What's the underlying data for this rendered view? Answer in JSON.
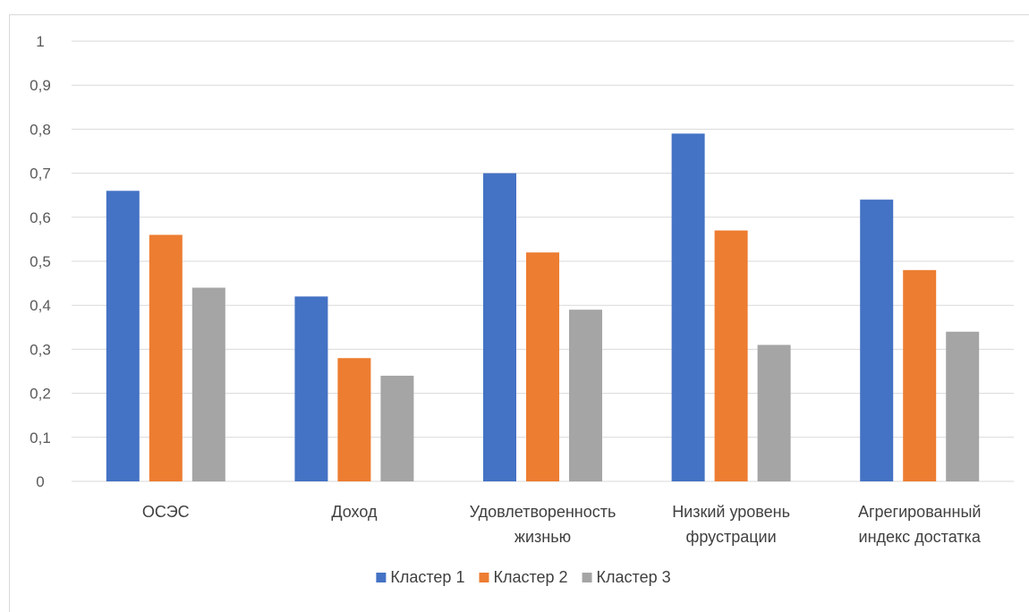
{
  "chart_data": {
    "type": "bar",
    "title": "",
    "xlabel": "",
    "ylabel": "",
    "categories": [
      [
        "ОСЭС"
      ],
      [
        "Доход"
      ],
      [
        "Удовлетворенность",
        "жизнью"
      ],
      [
        "Низкий уровень",
        "фрустрации"
      ],
      [
        "Агрегированный",
        "индекс достатка"
      ]
    ],
    "series": [
      {
        "name": "Кластер 1",
        "color": "#4472c4",
        "values": [
          0.66,
          0.42,
          0.7,
          0.79,
          0.64
        ]
      },
      {
        "name": "Кластер 2",
        "color": "#ed7d31",
        "values": [
          0.56,
          0.28,
          0.52,
          0.57,
          0.48
        ]
      },
      {
        "name": "Кластер 3",
        "color": "#a5a5a5",
        "values": [
          0.44,
          0.24,
          0.39,
          0.31,
          0.34
        ]
      }
    ],
    "ylim": [
      0,
      1
    ],
    "yticks": [
      0,
      0.1,
      0.2,
      0.3,
      0.4,
      0.5,
      0.6,
      0.7,
      0.8,
      0.9,
      1
    ],
    "ytick_labels": [
      "0",
      "0,1",
      "0,2",
      "0,3",
      "0,4",
      "0,5",
      "0,6",
      "0,7",
      "0,8",
      "0,9",
      "1"
    ],
    "grid": true,
    "legend_position": "bottom"
  }
}
